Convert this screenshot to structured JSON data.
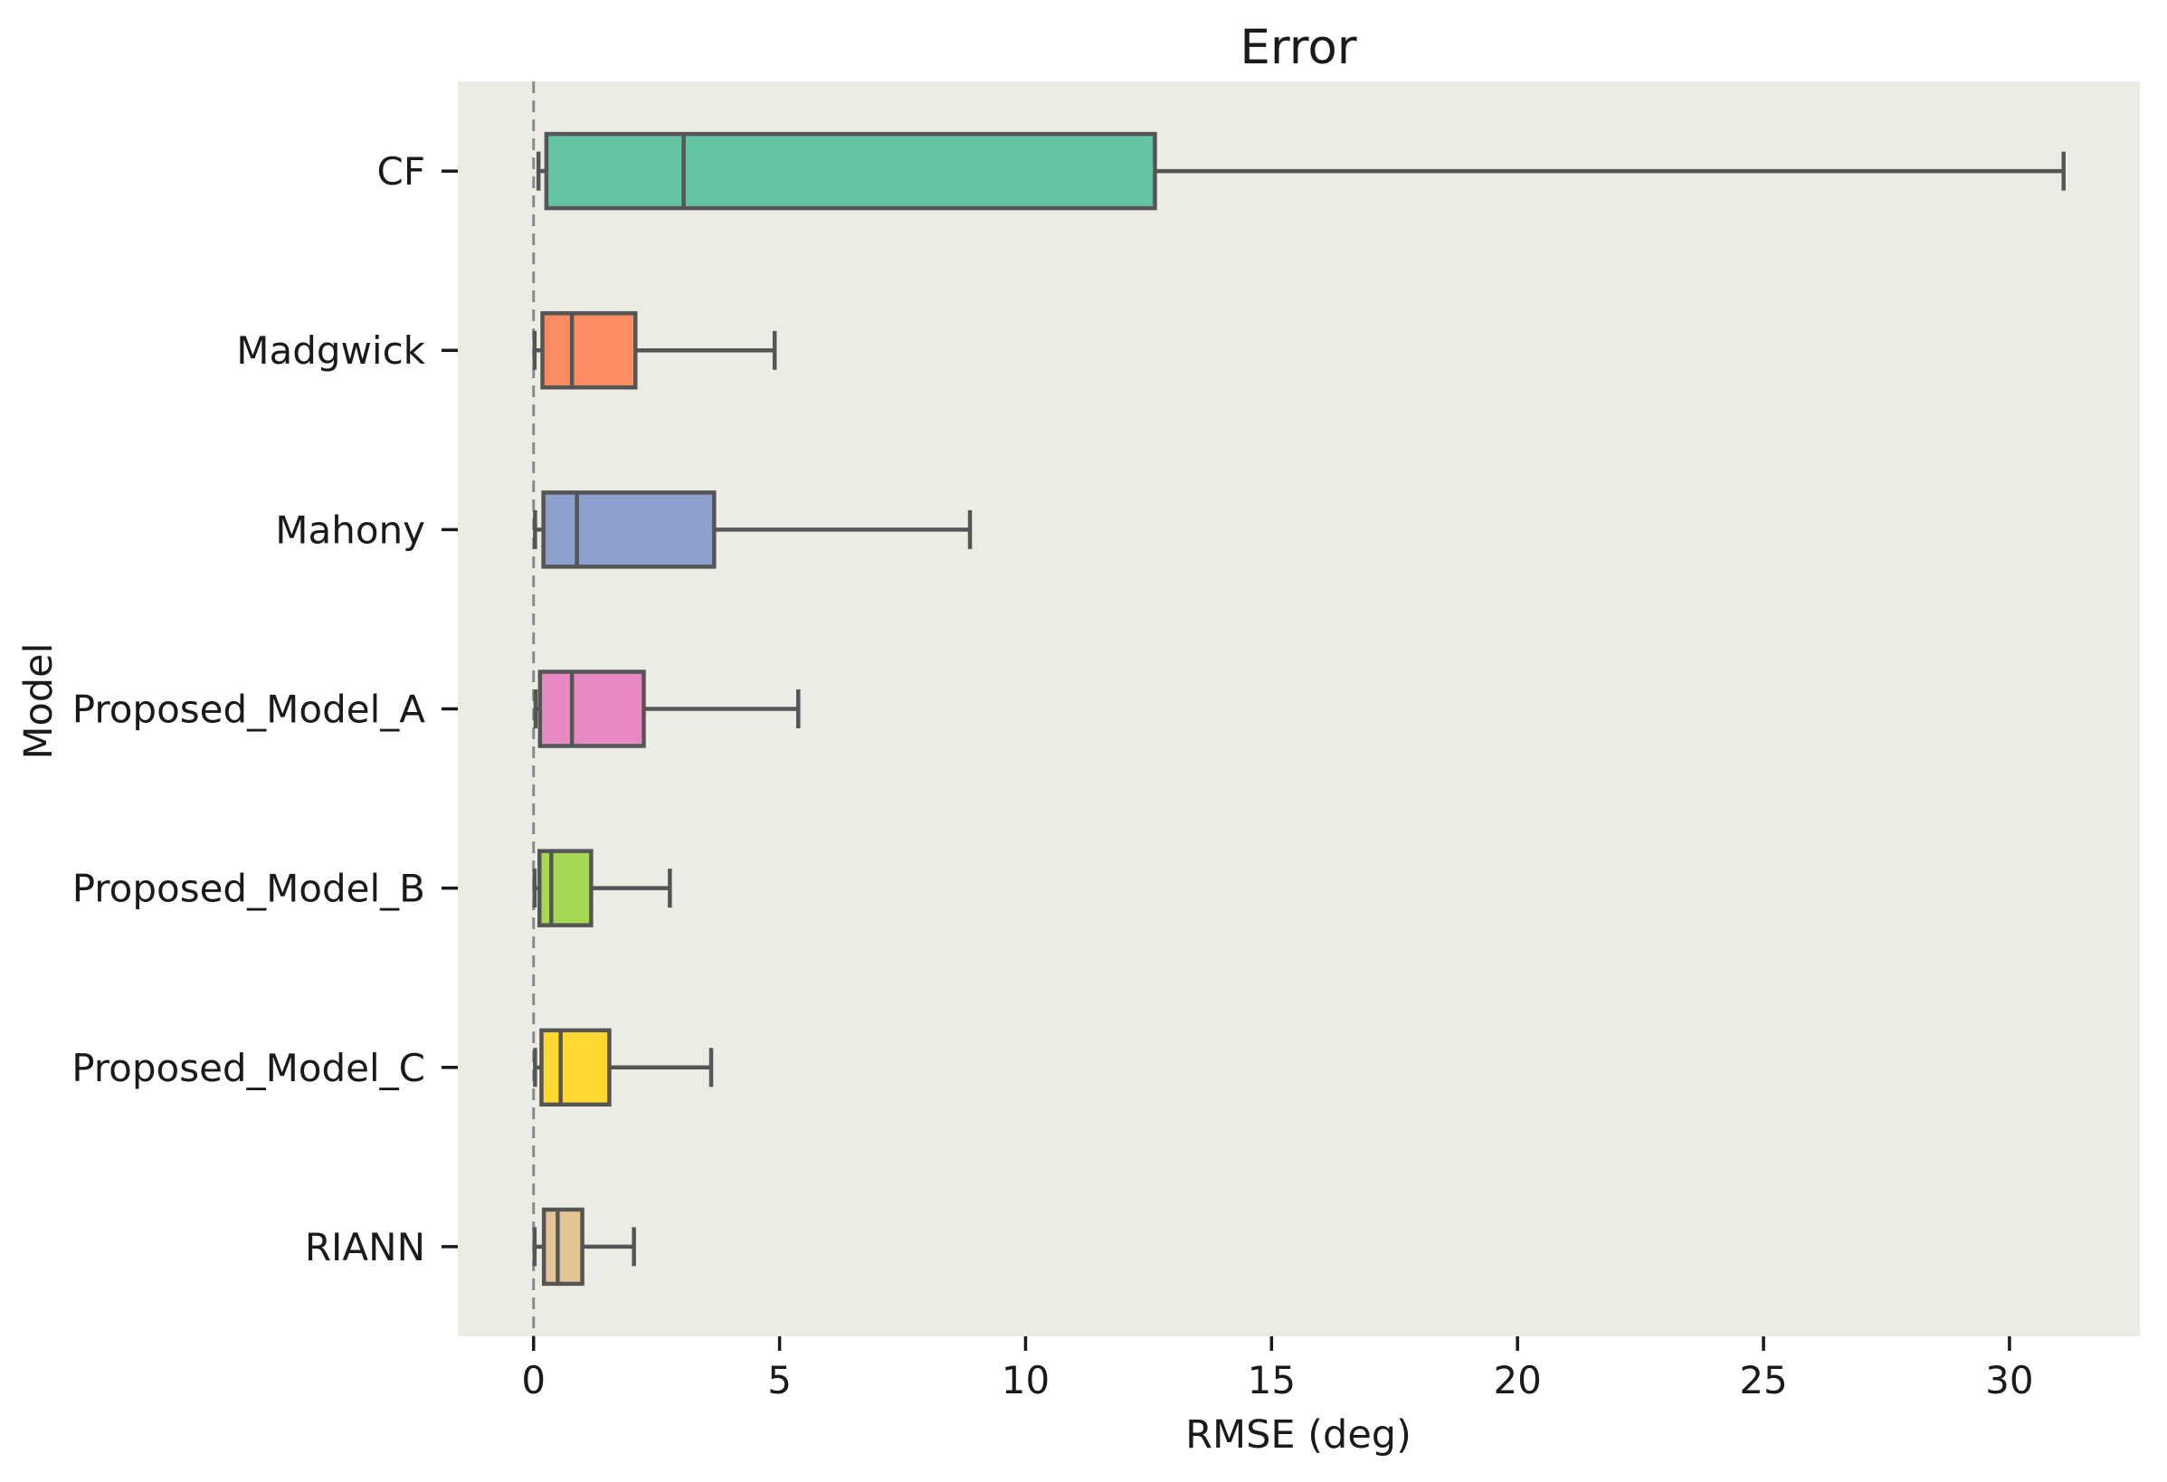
{
  "chart_data": {
    "type": "box",
    "orientation": "horizontal",
    "title": "Error",
    "xlabel": "RMSE (deg)",
    "ylabel": "Model",
    "x_ticks": [
      0,
      5,
      10,
      15,
      20,
      25,
      30
    ],
    "xlim": [
      -1.54,
      32.65
    ],
    "grid": false,
    "legend": null,
    "categories": [
      "CF",
      "Madgwick",
      "Mahony",
      "Proposed_Model_A",
      "Proposed_Model_B",
      "Proposed_Model_C",
      "RIANN"
    ],
    "boxes": [
      {
        "model": "CF",
        "whisker_low": 0.1,
        "q1": 0.26,
        "median": 3.05,
        "q3": 12.63,
        "whisker_high": 31.1,
        "color": "#66c2a5"
      },
      {
        "model": "Madgwick",
        "whisker_low": 0.02,
        "q1": 0.18,
        "median": 0.78,
        "q3": 2.07,
        "whisker_high": 4.9,
        "color": "#fc8d62"
      },
      {
        "model": "Mahony",
        "whisker_low": 0.03,
        "q1": 0.2,
        "median": 0.88,
        "q3": 3.67,
        "whisker_high": 8.87,
        "color": "#8da0cb"
      },
      {
        "model": "Proposed_Model_A",
        "whisker_low": 0.04,
        "q1": 0.13,
        "median": 0.78,
        "q3": 2.24,
        "whisker_high": 5.38,
        "color": "#e78ac3"
      },
      {
        "model": "Proposed_Model_B",
        "whisker_low": 0.02,
        "q1": 0.12,
        "median": 0.36,
        "q3": 1.17,
        "whisker_high": 2.77,
        "color": "#a6d854"
      },
      {
        "model": "Proposed_Model_C",
        "whisker_low": 0.03,
        "q1": 0.16,
        "median": 0.55,
        "q3": 1.54,
        "whisker_high": 3.61,
        "color": "#ffd92f"
      },
      {
        "model": "RIANN",
        "whisker_low": 0.02,
        "q1": 0.21,
        "median": 0.49,
        "q3": 0.99,
        "whisker_high": 2.04,
        "color": "#e5c494"
      }
    ],
    "zero_line": {
      "x": 0,
      "style": "dashed",
      "color": "#8a8a8a"
    },
    "colors": {
      "figure_bg": "#ffffff",
      "plot_bg": "#edece4",
      "box_edge": "#555555",
      "tick": "#1a1a1a",
      "text": "#1a1a1a"
    }
  }
}
